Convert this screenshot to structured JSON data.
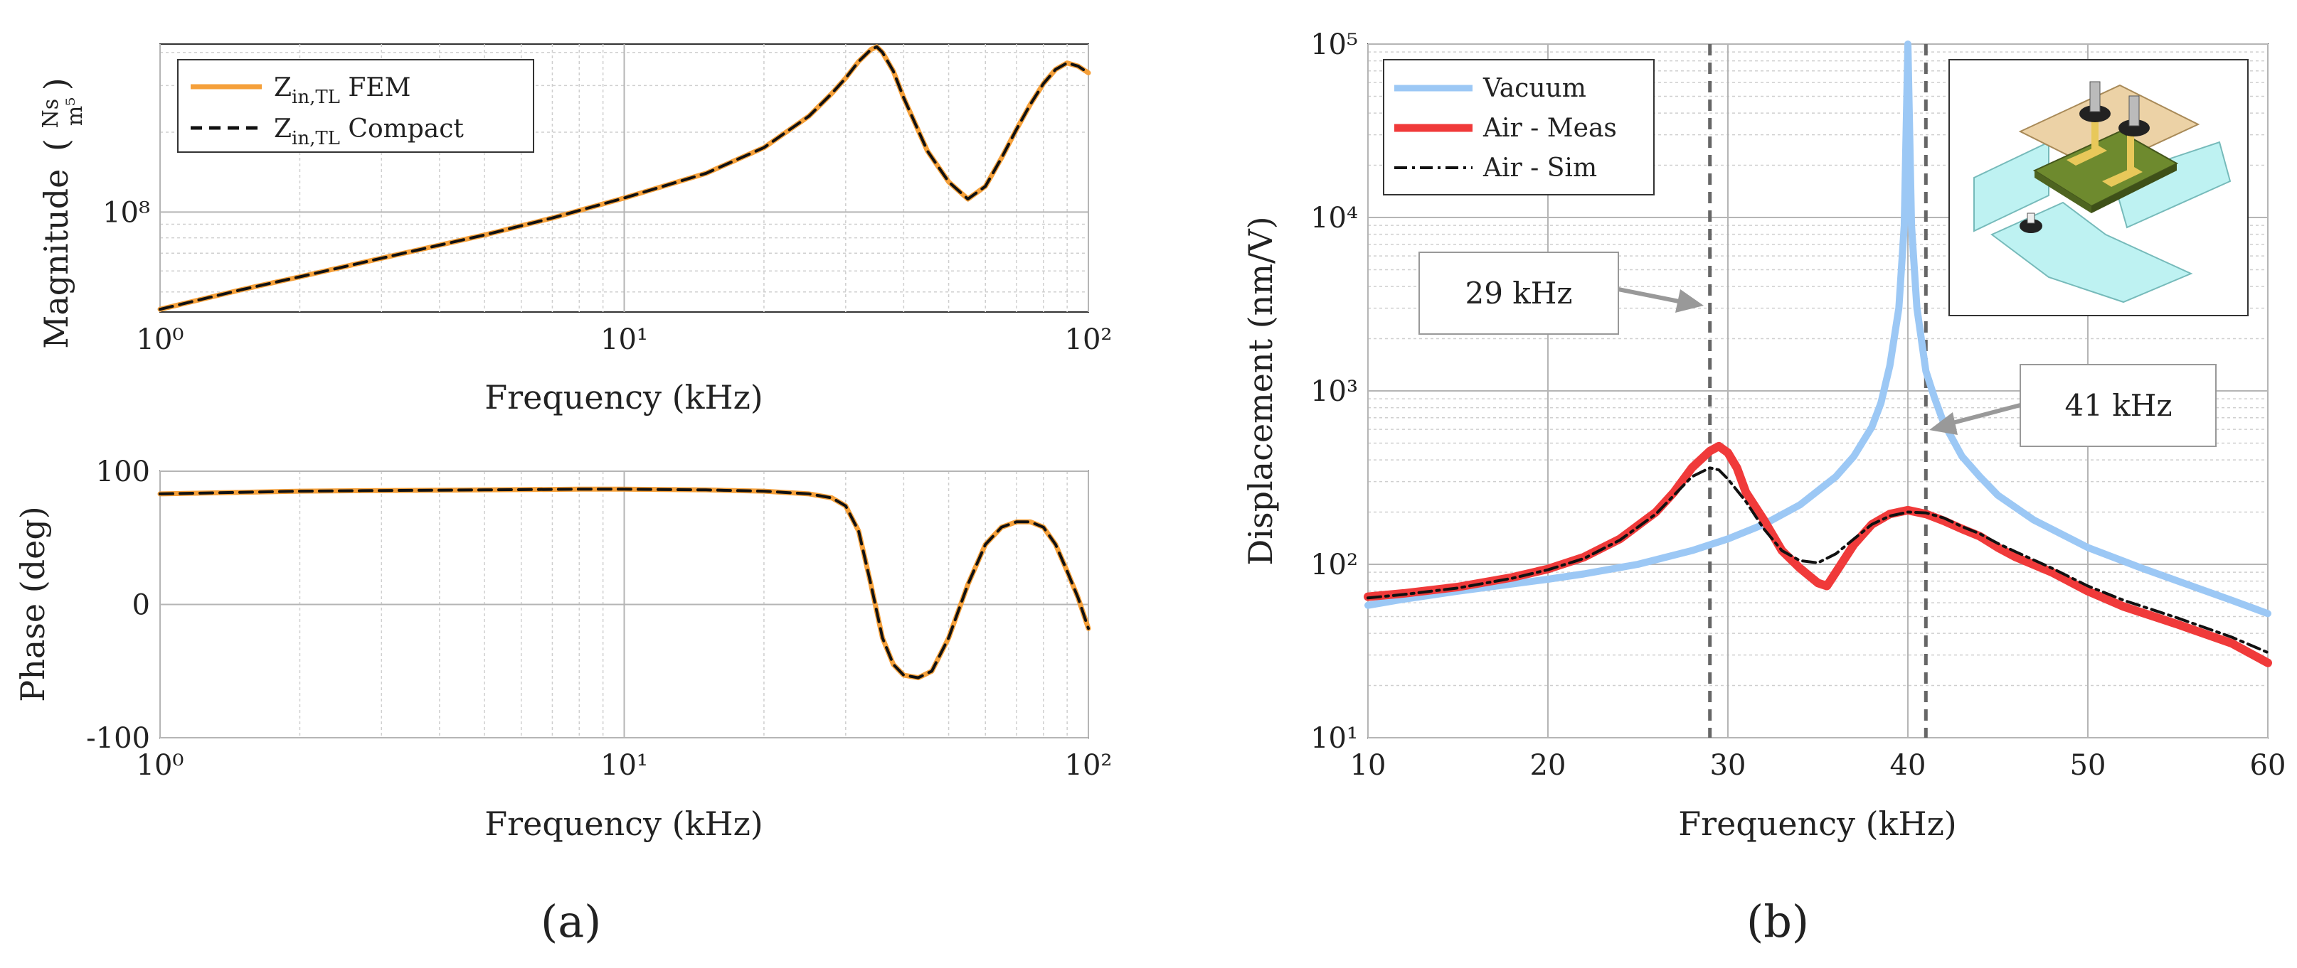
{
  "figure": {
    "panel_a_label": "(a)",
    "panel_b_label": "(b)"
  },
  "chart_data": [
    {
      "type": "line",
      "id": "magnitude",
      "title": "",
      "xlabel": "Frequency (kHz)",
      "ylabel": "Magnitude",
      "ylabel_unit_num": "Ns",
      "ylabel_unit_den": "m⁵",
      "xscale": "log",
      "yscale": "log",
      "xlim": [
        1,
        100
      ],
      "ylim": [
        42000000,
        430000000
      ],
      "xticks": [
        1,
        10,
        100
      ],
      "xtick_labels": [
        "10⁰",
        "10¹",
        "10²"
      ],
      "yticks": [
        100000000
      ],
      "ytick_labels": [
        "10⁸"
      ],
      "grid": true,
      "legend_position": "top-left",
      "series": [
        {
          "name": "Z_in,TL FEM",
          "name_main": "Z",
          "name_sub": "in,TL",
          "name_rest": " FEM",
          "color": "#f5a03a",
          "style": "solid",
          "x": [
            1,
            1.5,
            2,
            3,
            5,
            7,
            10,
            15,
            20,
            25,
            28,
            30,
            32,
            34,
            35,
            36,
            38,
            40,
            45,
            50,
            55,
            60,
            65,
            70,
            75,
            80,
            85,
            90,
            95,
            100
          ],
          "y": [
            43000000,
            51000000,
            57000000,
            67000000,
            82000000,
            95000000,
            113000000,
            140000000,
            175000000,
            230000000,
            280000000,
            320000000,
            370000000,
            410000000,
            420000000,
            400000000,
            340000000,
            270000000,
            170000000,
            130000000,
            112000000,
            125000000,
            160000000,
            205000000,
            255000000,
            305000000,
            345000000,
            365000000,
            355000000,
            335000000
          ]
        },
        {
          "name": "Z_in,TL Compact",
          "name_main": "Z",
          "name_sub": "in,TL",
          "name_rest": " Compact",
          "color": "#111111",
          "style": "dashed",
          "x": [
            1,
            1.5,
            2,
            3,
            5,
            7,
            10,
            15,
            20,
            25,
            28,
            30,
            32,
            34,
            35,
            36,
            38,
            40,
            45,
            50,
            55,
            60,
            65,
            70,
            75,
            80,
            85,
            90,
            95,
            100
          ],
          "y": [
            43000000,
            51000000,
            57000000,
            67000000,
            82000000,
            95000000,
            113000000,
            140000000,
            175000000,
            230000000,
            280000000,
            320000000,
            370000000,
            410000000,
            420000000,
            400000000,
            340000000,
            270000000,
            170000000,
            130000000,
            112000000,
            125000000,
            160000000,
            205000000,
            255000000,
            305000000,
            345000000,
            365000000,
            355000000,
            335000000
          ]
        }
      ]
    },
    {
      "type": "line",
      "id": "phase",
      "title": "",
      "xlabel": "Frequency (kHz)",
      "ylabel": "Phase (deg)",
      "xscale": "log",
      "yscale": "linear",
      "xlim": [
        1,
        100
      ],
      "ylim": [
        -100,
        100
      ],
      "xticks": [
        1,
        10,
        100
      ],
      "xtick_labels": [
        "10⁰",
        "10¹",
        "10²"
      ],
      "yticks": [
        -100,
        0,
        100
      ],
      "ytick_labels": [
        "-100",
        "0",
        "100"
      ],
      "grid": true,
      "series": [
        {
          "name": "",
          "color": "#f5a03a",
          "style": "solid",
          "x": [
            1,
            2,
            3,
            5,
            8,
            10,
            15,
            20,
            25,
            28,
            30,
            32,
            34,
            36,
            38,
            40,
            43,
            46,
            50,
            55,
            60,
            65,
            70,
            75,
            80,
            85,
            90,
            95,
            100
          ],
          "y": [
            83,
            85,
            85.5,
            86,
            86.5,
            86.5,
            86,
            85,
            83,
            80,
            74,
            55,
            15,
            -25,
            -45,
            -53,
            -55,
            -50,
            -25,
            15,
            45,
            58,
            62,
            62,
            58,
            45,
            25,
            5,
            -18
          ]
        },
        {
          "name": "",
          "color": "#111111",
          "style": "dashed",
          "x": [
            1,
            2,
            3,
            5,
            8,
            10,
            15,
            20,
            25,
            28,
            30,
            32,
            34,
            36,
            38,
            40,
            43,
            46,
            50,
            55,
            60,
            65,
            70,
            75,
            80,
            85,
            90,
            95,
            100
          ],
          "y": [
            83,
            85,
            85.5,
            86,
            86.5,
            86.5,
            86,
            85,
            83,
            80,
            74,
            55,
            15,
            -25,
            -45,
            -53,
            -55,
            -50,
            -25,
            15,
            45,
            58,
            62,
            62,
            58,
            45,
            25,
            5,
            -18
          ]
        }
      ]
    },
    {
      "type": "line",
      "id": "displacement",
      "title": "",
      "xlabel": "Frequency (kHz)",
      "ylabel": "Displacement (nm/V)",
      "xscale": "linear",
      "yscale": "log",
      "xlim": [
        10,
        60
      ],
      "ylim": [
        10,
        100000
      ],
      "xticks": [
        10,
        20,
        30,
        40,
        50,
        60
      ],
      "xtick_labels": [
        "10",
        "20",
        "30",
        "40",
        "50",
        "60"
      ],
      "yticks": [
        10,
        100,
        1000,
        10000,
        100000
      ],
      "ytick_labels": [
        "10¹",
        "10²",
        "10³",
        "10⁴",
        "10⁵"
      ],
      "grid": true,
      "legend_position": "top-left",
      "series": [
        {
          "name": "Vacuum",
          "color": "#9cc8f5",
          "style": "solid",
          "x": [
            10,
            12,
            15,
            18,
            20,
            22,
            25,
            28,
            30,
            32,
            34,
            36,
            37,
            38,
            38.5,
            39,
            39.5,
            39.8,
            40,
            40.2,
            40.5,
            41,
            41.5,
            42,
            43,
            44,
            45,
            47,
            50,
            53,
            55,
            58,
            60
          ],
          "y": [
            58,
            63,
            70,
            77,
            82,
            88,
            100,
            120,
            140,
            170,
            220,
            320,
            420,
            620,
            850,
            1400,
            3000,
            9000,
            100000,
            9000,
            3000,
            1300,
            900,
            650,
            420,
            320,
            250,
            180,
            125,
            95,
            80,
            62,
            52
          ]
        },
        {
          "name": "Air - Meas",
          "color": "#f03a3a",
          "style": "solid",
          "x": [
            10,
            12,
            15,
            18,
            20,
            22,
            24,
            26,
            27,
            28,
            29,
            29.5,
            30,
            30.5,
            31,
            32,
            33,
            34,
            35,
            35.5,
            36,
            37,
            38,
            39,
            40,
            41,
            42,
            43,
            44,
            45,
            46,
            48,
            50,
            52,
            55,
            58,
            60
          ],
          "y": [
            65,
            68,
            74,
            84,
            94,
            110,
            140,
            200,
            260,
            360,
            450,
            480,
            440,
            360,
            260,
            180,
            120,
            95,
            78,
            75,
            90,
            130,
            170,
            195,
            205,
            195,
            178,
            160,
            145,
            125,
            110,
            90,
            70,
            57,
            45,
            35,
            27
          ]
        },
        {
          "name": "Air - Sim",
          "color": "#111111",
          "style": "dashdot",
          "x": [
            10,
            12,
            15,
            18,
            20,
            22,
            24,
            26,
            27,
            28,
            29,
            29.5,
            30,
            31,
            32,
            33,
            34,
            35,
            36,
            37,
            38,
            39,
            40,
            41,
            42,
            43,
            44,
            45,
            46,
            48,
            50,
            52,
            55,
            58,
            60
          ],
          "y": [
            64,
            67,
            73,
            83,
            93,
            108,
            138,
            195,
            250,
            320,
            360,
            350,
            310,
            230,
            160,
            120,
            105,
            102,
            115,
            140,
            170,
            190,
            200,
            198,
            185,
            165,
            150,
            132,
            118,
            95,
            75,
            62,
            49,
            38,
            31
          ]
        }
      ],
      "annotations": [
        {
          "text": "29 kHz",
          "x": 29
        },
        {
          "text": "41 kHz",
          "x": 41
        }
      ]
    }
  ]
}
